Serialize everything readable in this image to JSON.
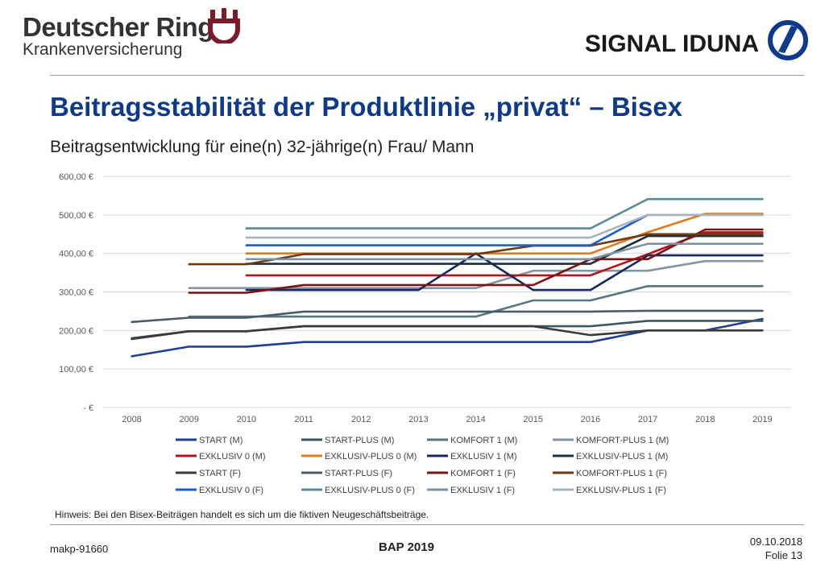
{
  "header": {
    "brand_name": "Deutscher Ring",
    "brand_sub": "Krankenversicherung",
    "partner_name": "SIGNAL IDUNA",
    "brand_color": "#7a1b2c",
    "partner_color": "#0e3a8c"
  },
  "title": "Beitragsstabilität der Produktlinie „privat“ – Bisex",
  "subtitle": "Beitragsentwicklung für eine(n) 32-jährige(n) Frau/ Mann",
  "note": "Hinweis: Bei den Bisex-Beiträgen handelt es sich um die fiktiven Neugeschäftsbeiträge.",
  "footer": {
    "left": "makp-91660",
    "center": "BAP 2019",
    "date": "09.10.2018",
    "page": "Folie 13"
  },
  "chart_data": {
    "type": "line",
    "title": "",
    "xlabel": "",
    "ylabel": "",
    "ylim": [
      0,
      600
    ],
    "yticks": [
      0,
      100,
      200,
      300,
      400,
      500,
      600
    ],
    "ytick_labels": [
      "-  €",
      "100,00 €",
      "200,00 €",
      "300,00 €",
      "400,00 €",
      "500,00 €",
      "600,00 €"
    ],
    "x": [
      "2008",
      "2009",
      "2010",
      "2011",
      "2012",
      "2013",
      "2014",
      "2015",
      "2016",
      "2017",
      "2018",
      "2019"
    ],
    "grid": true,
    "legend_position": "bottom",
    "series": [
      {
        "name": "START (M)",
        "color": "#1f3f8f",
        "values": [
          133,
          158,
          158,
          170,
          170,
          170,
          170,
          170,
          170,
          200,
          200,
          230
        ]
      },
      {
        "name": "START-PLUS (M)",
        "color": "#3d5561",
        "values": [
          180,
          198,
          198,
          211,
          211,
          211,
          211,
          211,
          211,
          225,
          225,
          225
        ]
      },
      {
        "name": "KOMFORT 1 (M)",
        "color": "#577682",
        "values": [
          null,
          236,
          236,
          236,
          236,
          236,
          236,
          278,
          278,
          315,
          315,
          315
        ]
      },
      {
        "name": "KOMFORT-PLUS 1 (M)",
        "color": "#8495a3",
        "values": [
          null,
          310,
          310,
          310,
          310,
          310,
          310,
          355,
          355,
          355,
          380,
          380
        ]
      },
      {
        "name": "EXKLUSIV 0 (M)",
        "color": "#b0161c",
        "values": [
          null,
          null,
          343,
          343,
          343,
          343,
          343,
          343,
          343,
          398,
          455,
          455
        ]
      },
      {
        "name": "EXKLUSIV-PLUS 0 (M)",
        "color": "#e07b1f",
        "values": [
          null,
          null,
          400,
          400,
          400,
          400,
          400,
          400,
          400,
          455,
          503,
          503
        ]
      },
      {
        "name": "EXKLUSIV 1 (M)",
        "color": "#15275e",
        "values": [
          null,
          null,
          305,
          305,
          305,
          305,
          400,
          305,
          305,
          395,
          395,
          395
        ]
      },
      {
        "name": "EXKLUSIV-PLUS 1 (M)",
        "color": "#1c2f3f",
        "values": [
          null,
          null,
          373,
          373,
          373,
          373,
          373,
          373,
          373,
          445,
          445,
          445
        ]
      },
      {
        "name": "START (F)",
        "color": "#3a3a3a",
        "values": [
          178,
          198,
          198,
          211,
          211,
          211,
          211,
          211,
          188,
          200,
          200,
          200
        ]
      },
      {
        "name": "START-PLUS (F)",
        "color": "#4a5a66",
        "values": [
          222,
          233,
          233,
          249,
          249,
          249,
          249,
          249,
          249,
          251,
          251,
          251
        ]
      },
      {
        "name": "KOMFORT 1 (F)",
        "color": "#7a1414",
        "values": [
          null,
          298,
          298,
          318,
          318,
          318,
          318,
          318,
          385,
          385,
          462,
          462
        ]
      },
      {
        "name": "KOMFORT-PLUS 1 (F)",
        "color": "#6e3a10",
        "values": [
          null,
          372,
          372,
          398,
          398,
          398,
          398,
          420,
          420,
          450,
          450,
          450
        ]
      },
      {
        "name": "EXKLUSIV 0 (F)",
        "color": "#1f5bd0",
        "values": [
          null,
          null,
          421,
          421,
          421,
          421,
          421,
          421,
          421,
          500,
          500,
          500
        ]
      },
      {
        "name": "EXKLUSIV-PLUS 0 (F)",
        "color": "#5a8a98",
        "values": [
          null,
          null,
          465,
          465,
          465,
          465,
          465,
          465,
          465,
          541,
          541,
          541
        ]
      },
      {
        "name": "EXKLUSIV 1 (F)",
        "color": "#7d93a5",
        "values": [
          null,
          null,
          385,
          385,
          385,
          385,
          385,
          385,
          385,
          425,
          425,
          425
        ]
      },
      {
        "name": "EXKLUSIV-PLUS 1 (F)",
        "color": "#a5b3bd",
        "values": [
          null,
          null,
          441,
          441,
          441,
          441,
          441,
          441,
          441,
          500,
          500,
          500
        ]
      }
    ]
  }
}
